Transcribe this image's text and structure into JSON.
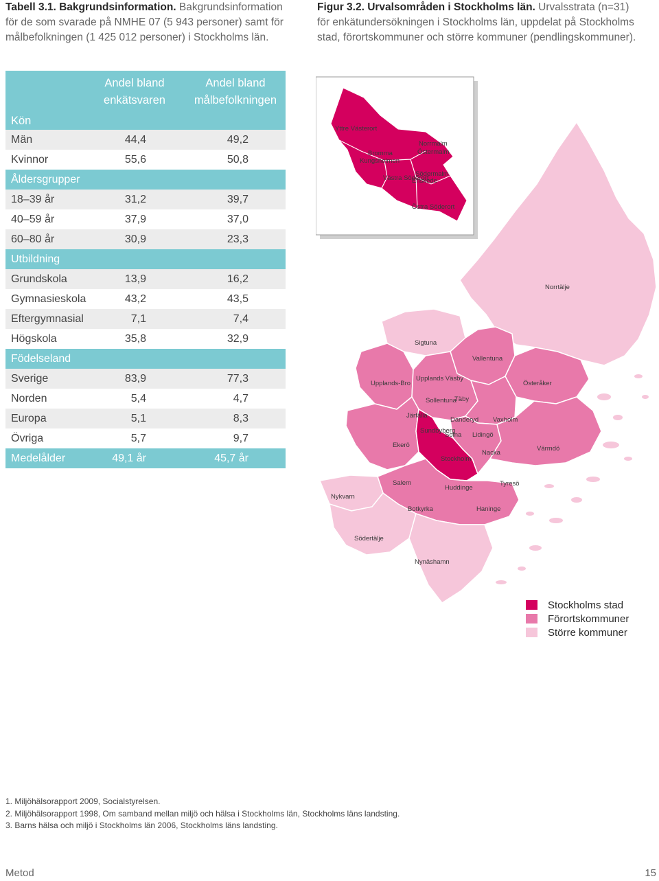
{
  "table_caption": {
    "label": "Tabell 3.1. Bakgrundsinformation.",
    "text": " Bakgrundsinformation för de som svarade på NMHE 07 (5 943 personer) samt för målbefolkningen (1 425 012 personer) i Stockholms län."
  },
  "figure_caption": {
    "label": "Figur 3.2. Urvalsområden i Stockholms län.",
    "text": " Urvalsstrata (n=31) för enkätundersökningen i Stockholms län, uppdelat på Stockholms stad, förortskommuner och större kommuner (pendlingskommuner)."
  },
  "table": {
    "col1": "Andel bland enkätsvaren",
    "col2": "Andel bland målbefolkningen",
    "first_section": "Kön",
    "rows": [
      {
        "label": "Män",
        "v1": "44,4",
        "v2": "49,2"
      },
      {
        "label": "Kvinnor",
        "v1": "55,6",
        "v2": "50,8"
      },
      {
        "label": "Åldersgrupper",
        "section": true
      },
      {
        "label": "18–39 år",
        "v1": "31,2",
        "v2": "39,7"
      },
      {
        "label": "40–59 år",
        "v1": "37,9",
        "v2": "37,0"
      },
      {
        "label": "60–80 år",
        "v1": "30,9",
        "v2": "23,3"
      },
      {
        "label": "Utbildning",
        "section": true
      },
      {
        "label": "Grundskola",
        "v1": "13,9",
        "v2": "16,2"
      },
      {
        "label": "Gymnasieskola",
        "v1": "43,2",
        "v2": "43,5"
      },
      {
        "label": "Eftergymnasial",
        "v1": "7,1",
        "v2": "7,4"
      },
      {
        "label": "Högskola",
        "v1": "35,8",
        "v2": "32,9"
      },
      {
        "label": "Födelseland",
        "section": true
      },
      {
        "label": "Sverige",
        "v1": "83,9",
        "v2": "77,3"
      },
      {
        "label": "Norden",
        "v1": "5,4",
        "v2": "4,7"
      },
      {
        "label": "Europa",
        "v1": "5,1",
        "v2": "8,3"
      },
      {
        "label": "Övriga",
        "v1": "5,7",
        "v2": "9,7"
      },
      {
        "label": "Medelålder",
        "v1": "49,1 år",
        "v2": "45,7 år",
        "last": true
      }
    ]
  },
  "map": {
    "inset_labels": [
      "Yttre Västerort",
      "Bromma",
      "Kungsholmen",
      "Norrmalm",
      "Östermalm",
      "Västra Söderort",
      "Södermalm",
      "Enskede",
      "Östra Söderort"
    ],
    "labels": [
      "Norrtälje",
      "Sigtuna",
      "Vallentuna",
      "Upplands-Bro",
      "Upplands Väsby",
      "Österåker",
      "Sollentuna",
      "Täby",
      "Järfälla",
      "Danderyd",
      "Vaxholm",
      "Sundbyberg",
      "Solna",
      "Lidingö",
      "Ekerö",
      "Stockholm",
      "Nacka",
      "Värmdö",
      "Salem",
      "Huddinge",
      "Tyresö",
      "Nykvarn",
      "Botkyrka",
      "Haninge",
      "Södertälje",
      "Nynäshamn"
    ]
  },
  "legend": [
    {
      "label": "Stockholms stad",
      "color": "#d4005e"
    },
    {
      "label": "Förortskommuner",
      "color": "#e879aa"
    },
    {
      "label": "Större kommuner",
      "color": "#f6c6da"
    }
  ],
  "footnotes": [
    "1. Miljöhälsorapport 2009, Socialstyrelsen.",
    "2. Miljöhälsorapport 1998, Om samband mellan miljö och hälsa i Stockholms län, Stockholms läns landsting.",
    "3. Barns hälsa och miljö i Stockholms län 2006, Stockholms läns landsting."
  ],
  "footer": {
    "left": "Metod",
    "right": "15"
  }
}
